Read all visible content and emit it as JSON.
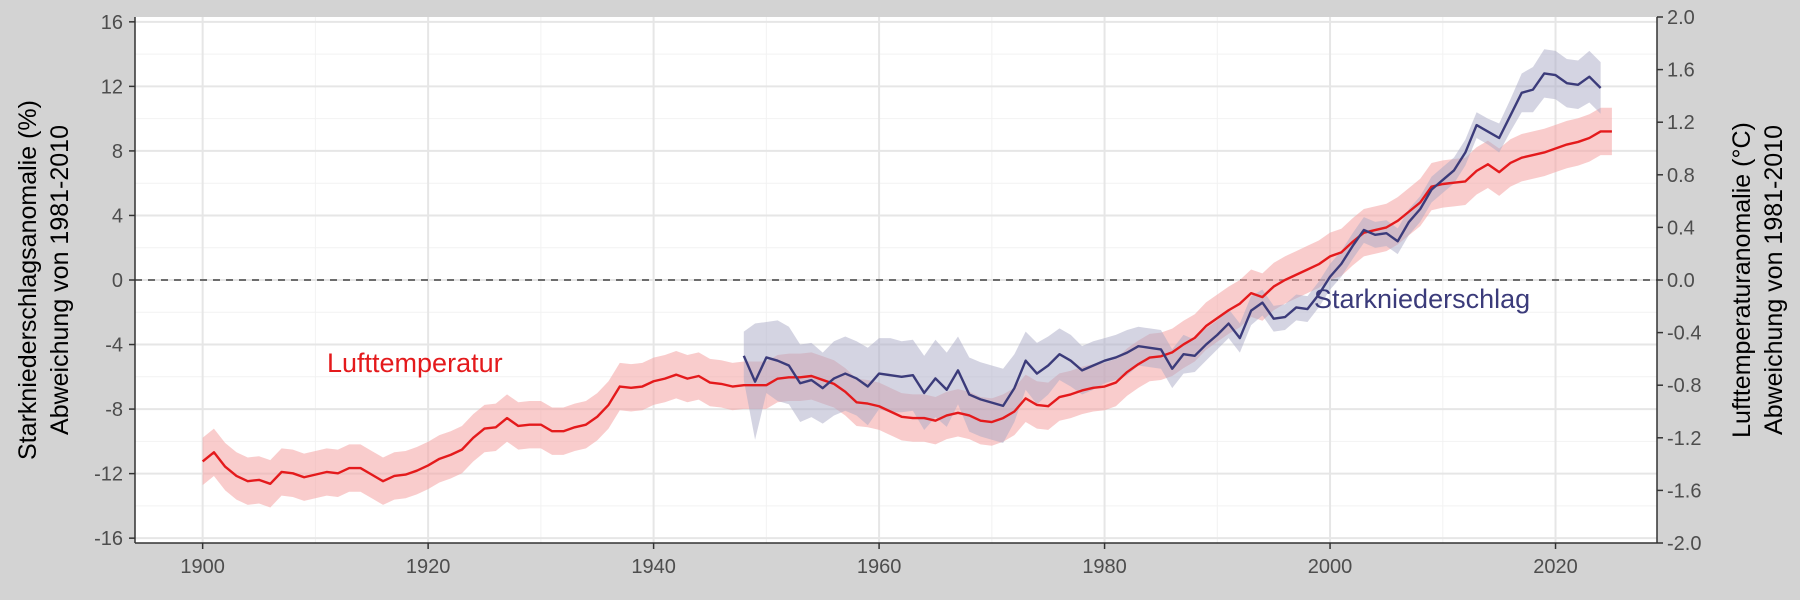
{
  "chart_data": {
    "type": "line",
    "x_ticks": [
      1900,
      1920,
      1940,
      1960,
      1980,
      2000,
      2020
    ],
    "xlim": [
      1894,
      2029
    ],
    "y_left": {
      "label_line1": "Starkniederschlagsanomalie (%)",
      "label_line2": "Abweichung von 1981-2010",
      "ticks": [
        16,
        12,
        8,
        4,
        0,
        -4,
        -8,
        -12,
        -16
      ],
      "lim": [
        -16.3,
        16.3
      ]
    },
    "y_right": {
      "label_line1": "Lufttemperaturanomalie (°C)",
      "label_line2": "Abweichung von 1981-2010",
      "ticks": [
        "2.0",
        "1.6",
        "1.2",
        "0.8",
        "0.4",
        "0.0",
        "-0.4",
        "-0.8",
        "-1.2",
        "-1.6",
        "-2.0"
      ],
      "lim": [
        -2.0,
        2.0
      ]
    },
    "reference_line": 0,
    "grid": true,
    "colors": {
      "temperature_line": "#e41a1c",
      "temperature_band": "#f4a3a3",
      "precip_line": "#3b3b7a",
      "precip_band": "#a9aac6"
    },
    "series": [
      {
        "name": "Lufttemperatur",
        "axis": "right",
        "band_halfwidth": 0.18,
        "x_start": 1900,
        "values": [
          -1.38,
          -1.31,
          -1.42,
          -1.49,
          -1.53,
          -1.52,
          -1.55,
          -1.46,
          -1.47,
          -1.5,
          -1.48,
          -1.46,
          -1.47,
          -1.43,
          -1.43,
          -1.48,
          -1.53,
          -1.49,
          -1.48,
          -1.45,
          -1.41,
          -1.36,
          -1.33,
          -1.29,
          -1.2,
          -1.13,
          -1.12,
          -1.05,
          -1.11,
          -1.1,
          -1.1,
          -1.15,
          -1.15,
          -1.12,
          -1.1,
          -1.04,
          -0.95,
          -0.81,
          -0.82,
          -0.81,
          -0.77,
          -0.75,
          -0.72,
          -0.75,
          -0.73,
          -0.78,
          -0.79,
          -0.81,
          -0.8,
          -0.8,
          -0.8,
          -0.75,
          -0.74,
          -0.74,
          -0.73,
          -0.76,
          -0.79,
          -0.85,
          -0.93,
          -0.94,
          -0.96,
          -1.0,
          -1.04,
          -1.05,
          -1.05,
          -1.07,
          -1.03,
          -1.01,
          -1.03,
          -1.07,
          -1.08,
          -1.05,
          -1.0,
          -0.9,
          -0.95,
          -0.96,
          -0.89,
          -0.87,
          -0.84,
          -0.82,
          -0.81,
          -0.78,
          -0.7,
          -0.64,
          -0.59,
          -0.58,
          -0.55,
          -0.49,
          -0.44,
          -0.35,
          -0.29,
          -0.23,
          -0.18,
          -0.1,
          -0.13,
          -0.05,
          0.0,
          0.04,
          0.08,
          0.12,
          0.18,
          0.21,
          0.29,
          0.36,
          0.38,
          0.4,
          0.45,
          0.52,
          0.59,
          0.71,
          0.73,
          0.74,
          0.75,
          0.83,
          0.88,
          0.82,
          0.89,
          0.93,
          0.95,
          0.97,
          1.0,
          1.03,
          1.05,
          1.08,
          1.13,
          1.13
        ]
      },
      {
        "name": "Starkniederschlag",
        "axis": "left",
        "x_start": 1948,
        "values": [
          -4.7,
          -6.3,
          -4.8,
          -5.0,
          -5.3,
          -6.4,
          -6.2,
          -6.7,
          -6.1,
          -5.8,
          -6.1,
          -6.6,
          -5.8,
          -5.9,
          -6.0,
          -5.9,
          -7.0,
          -6.1,
          -6.8,
          -5.6,
          -7.1,
          -7.4,
          -7.6,
          -7.8,
          -6.7,
          -5.0,
          -5.8,
          -5.3,
          -4.6,
          -5.0,
          -5.6,
          -5.3,
          -5.0,
          -4.8,
          -4.5,
          -4.1,
          -4.2,
          -4.3,
          -5.5,
          -4.6,
          -4.7,
          -4.0,
          -3.4,
          -2.7,
          -3.6,
          -1.9,
          -1.4,
          -2.4,
          -2.3,
          -1.7,
          -1.8,
          -0.9,
          0.2,
          1.0,
          2.1,
          3.1,
          2.8,
          2.9,
          2.4,
          3.6,
          4.4,
          5.6,
          6.2,
          6.8,
          7.9,
          9.6,
          9.2,
          8.8,
          10.2,
          11.6,
          11.8,
          12.8,
          12.7,
          12.2,
          12.1,
          12.6,
          11.9
        ],
        "band_halfwidth": [
          1.5,
          3.6,
          2.2,
          2.5,
          2.4,
          2.4,
          2.3,
          2.2,
          2.3,
          2.3,
          2.3,
          2.4,
          2.2,
          2.3,
          2.2,
          2.2,
          2.3,
          2.4,
          2.3,
          2.1,
          2.3,
          2.3,
          2.3,
          2.3,
          2.1,
          1.8,
          1.9,
          1.8,
          1.6,
          1.6,
          1.5,
          1.5,
          1.4,
          1.4,
          1.4,
          1.2,
          1.2,
          1.2,
          1.2,
          1.2,
          1.0,
          1.0,
          0.9,
          0.9,
          0.9,
          0.9,
          0.8,
          0.8,
          0.8,
          0.8,
          0.8,
          0.8,
          0.8,
          0.8,
          0.8,
          0.8,
          0.8,
          0.8,
          0.8,
          0.8,
          0.8,
          0.8,
          0.8,
          0.8,
          0.8,
          0.8,
          0.8,
          0.9,
          1.0,
          1.2,
          1.4,
          1.5,
          1.5,
          1.5,
          1.5,
          1.6,
          1.6
        ]
      }
    ]
  }
}
